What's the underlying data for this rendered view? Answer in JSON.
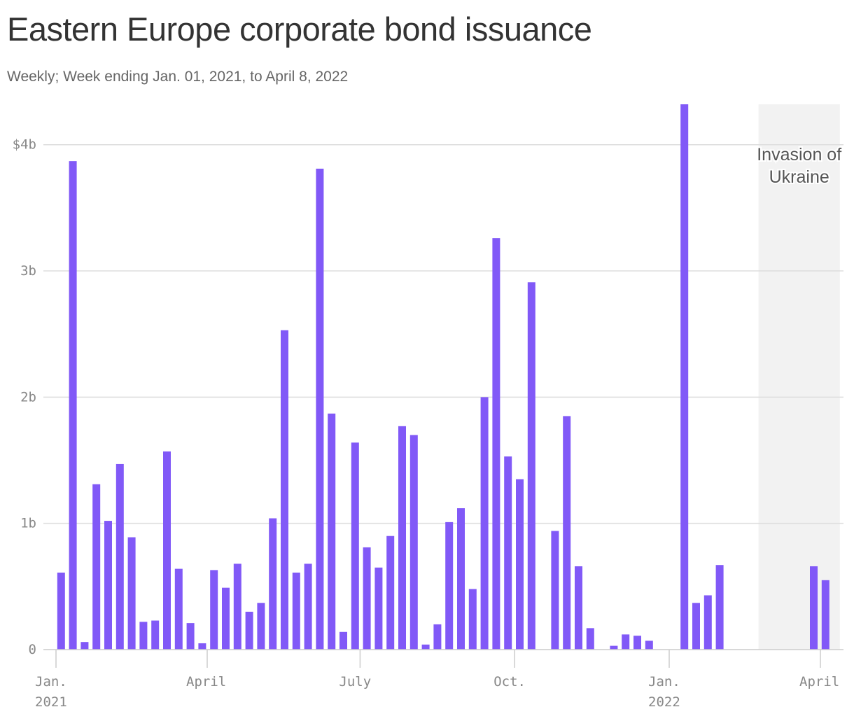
{
  "title": "Eastern Europe corporate bond issuance",
  "subtitle": "Weekly; Week ending Jan. 01, 2021, to April 8, 2022",
  "colors": {
    "bar": "#8159f7",
    "shade": "#f2f2f2",
    "grid": "#dddddd",
    "axis": "#cccccc"
  },
  "chart_data": {
    "type": "bar",
    "title": "Eastern Europe corporate bond issuance",
    "subtitle": "Weekly; Week ending Jan. 01, 2021, to April 8, 2022",
    "x_start": "2021-01-01",
    "x_end": "2022-04-08",
    "ylim": [
      0,
      4.32
    ],
    "y_ticks": [
      {
        "value": 0,
        "label": "0"
      },
      {
        "value": 1,
        "label": "1b"
      },
      {
        "value": 2,
        "label": "2b"
      },
      {
        "value": 3,
        "label": "3b"
      },
      {
        "value": 4,
        "label": "$4b"
      }
    ],
    "x_ticks": [
      {
        "date": "2021-01-01",
        "label": [
          "Jan.",
          "2021"
        ]
      },
      {
        "date": "2021-04-01",
        "label": [
          "April"
        ]
      },
      {
        "date": "2021-07-01",
        "label": [
          "July"
        ]
      },
      {
        "date": "2021-10-01",
        "label": [
          "Oct."
        ]
      },
      {
        "date": "2022-01-01",
        "label": [
          "Jan.",
          "2022"
        ]
      },
      {
        "date": "2022-04-01",
        "label": [
          "April"
        ]
      }
    ],
    "annotation": {
      "label": [
        "Invasion of",
        "Ukraine"
      ],
      "start": "2022-02-24",
      "end": "2022-04-08"
    },
    "series": [
      {
        "dates": [
          "2021-01-08",
          "2021-01-15",
          "2021-01-22",
          "2021-01-29",
          "2021-02-05",
          "2021-02-12",
          "2021-02-19",
          "2021-02-26",
          "2021-03-05",
          "2021-03-12",
          "2021-03-19",
          "2021-03-26",
          "2021-04-02",
          "2021-04-09",
          "2021-04-16",
          "2021-04-23",
          "2021-04-30",
          "2021-05-07",
          "2021-05-14",
          "2021-05-21",
          "2021-05-28",
          "2021-06-04",
          "2021-06-11",
          "2021-06-18",
          "2021-06-25",
          "2021-07-02",
          "2021-07-09",
          "2021-07-16",
          "2021-07-23",
          "2021-07-30",
          "2021-08-06",
          "2021-08-13",
          "2021-08-20",
          "2021-08-27",
          "2021-09-03",
          "2021-09-10",
          "2021-09-17",
          "2021-09-24",
          "2021-10-01",
          "2021-10-08",
          "2021-10-15",
          "2021-10-22",
          "2021-10-29",
          "2021-11-05",
          "2021-11-12",
          "2021-11-19",
          "2021-11-26",
          "2021-12-03",
          "2021-12-10",
          "2021-12-17",
          "2021-12-24",
          "2021-12-31",
          "2022-01-07",
          "2022-01-14",
          "2022-01-21",
          "2022-01-28",
          "2022-02-04",
          "2022-02-11",
          "2022-02-18",
          "2022-02-25",
          "2022-03-04",
          "2022-03-11",
          "2022-03-18",
          "2022-03-25",
          "2022-04-01",
          "2022-04-08"
        ],
        "values": [
          0.61,
          3.87,
          0.06,
          1.31,
          1.02,
          1.47,
          0.89,
          0.22,
          0.23,
          1.57,
          0.64,
          0.21,
          0.05,
          0.63,
          0.49,
          0.68,
          0.3,
          0.37,
          1.04,
          2.53,
          0.61,
          0.68,
          3.81,
          1.87,
          0.14,
          1.64,
          0.81,
          0.65,
          0.9,
          1.77,
          1.7,
          0.04,
          0.2,
          1.01,
          1.12,
          0.48,
          2.0,
          3.26,
          1.53,
          1.35,
          2.91,
          0,
          0.94,
          1.85,
          0.66,
          0.17,
          0,
          0.03,
          0.12,
          0.11,
          0.07,
          0,
          0,
          4.32,
          0.37,
          0.43,
          0.67,
          0,
          0,
          0,
          0,
          0,
          0,
          0,
          0.66,
          0.55
        ]
      }
    ]
  }
}
